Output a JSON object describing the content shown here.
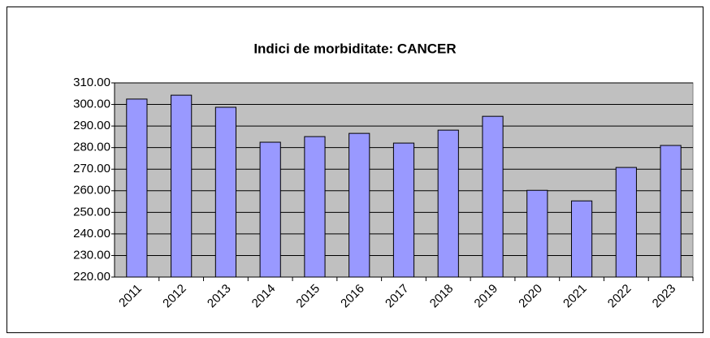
{
  "chart_data": {
    "type": "bar",
    "title": "Indici de morbiditate: CANCER",
    "categories": [
      "2011",
      "2012",
      "2013",
      "2014",
      "2015",
      "2016",
      "2017",
      "2018",
      "2019",
      "2020",
      "2021",
      "2022",
      "2023"
    ],
    "values": [
      302.5,
      304.3,
      298.7,
      282.5,
      285.1,
      286.6,
      282.1,
      288.1,
      294.5,
      260.2,
      255.3,
      270.8,
      281.0
    ],
    "color": "#9999ff",
    "ylim": [
      220,
      310
    ],
    "yticks": [
      {
        "value": 220,
        "label": "220.00"
      },
      {
        "value": 230,
        "label": "230.00"
      },
      {
        "value": 240,
        "label": "240.00"
      },
      {
        "value": 250,
        "label": "250.00"
      },
      {
        "value": 260,
        "label": "260.00"
      },
      {
        "value": 270,
        "label": "270.00"
      },
      {
        "value": 280,
        "label": "280.00"
      },
      {
        "value": 290,
        "label": "290.00"
      },
      {
        "value": 300,
        "label": "300.00"
      },
      {
        "value": 310,
        "label": "310.00"
      }
    ],
    "grid": true
  }
}
